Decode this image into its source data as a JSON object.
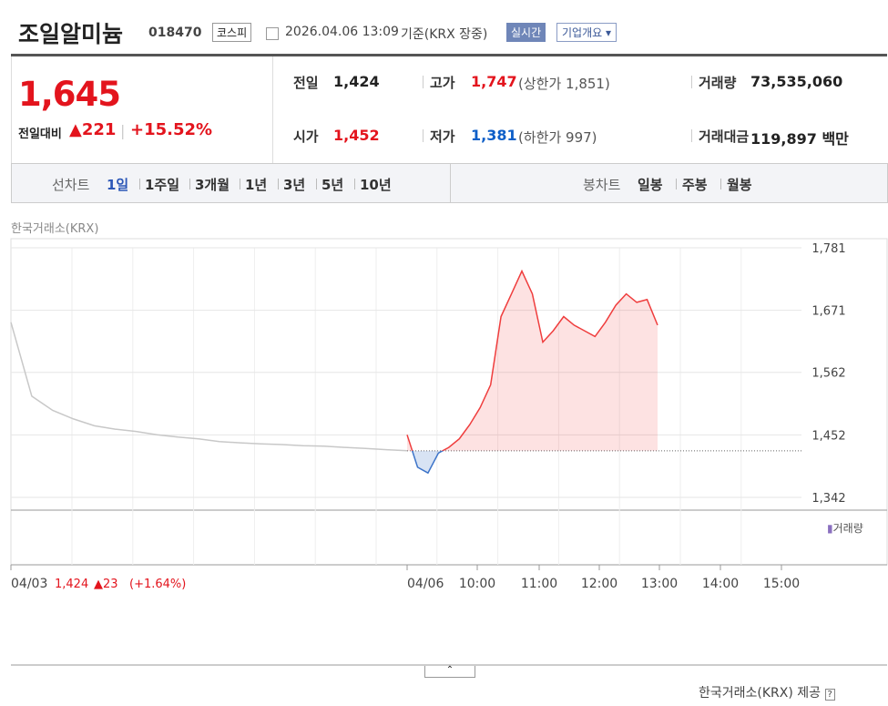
{
  "header": {
    "title": "조일알미늄",
    "code": "018470",
    "market": "코스피",
    "timestamp": "2026.04.06 13:09",
    "basis": "기준(KRX 장중)",
    "realtime": "실시간",
    "company_info": "기업개요"
  },
  "summary": {
    "price": "1,645",
    "change_label": "전일대비",
    "change": "▲221",
    "change_rate": "+15.52%",
    "stats": [
      {
        "label": "전일",
        "value": "1,424"
      },
      {
        "label": "고가",
        "value": "1,747",
        "note": "(상한가 1,851)"
      },
      {
        "label": "거래량",
        "value": "73,535,060"
      },
      {
        "label": "시가",
        "value": "1,452"
      },
      {
        "label": "저가",
        "value": "1,381",
        "note": "(하한가 997)"
      },
      {
        "label": "거래대금",
        "value": "119,897 백만"
      }
    ]
  },
  "tabs": {
    "line_label": "선차트",
    "line": [
      "1일",
      "1주일",
      "3개월",
      "1년",
      "3년",
      "5년",
      "10년"
    ],
    "candle_label": "봉차트",
    "candle": [
      "일봉",
      "주봉",
      "월봉"
    ]
  },
  "chart_data": {
    "type": "line",
    "source": "한국거래소(KRX)",
    "volume_label": "거래량",
    "ylim": [
      1342,
      1781
    ],
    "yticks": [
      {
        "value": 1342,
        "label": "1,342"
      },
      {
        "value": 1452,
        "label": "1,452"
      },
      {
        "value": 1562,
        "label": "1,562"
      },
      {
        "value": 1671,
        "label": "1,671"
      },
      {
        "value": 1781,
        "label": "1,781"
      }
    ],
    "reference": 1424,
    "series": [
      {
        "color": "#c8c8c8",
        "values": [
          1650,
          1520,
          1495,
          1480,
          1468,
          1462,
          1458,
          1452,
          1448,
          1445,
          1440,
          1438,
          1436,
          1435,
          1433,
          1432,
          1430,
          1428,
          1426,
          1424
        ]
      },
      {
        "color": "#ef3d3d",
        "down_color": "#3d74c9",
        "values": [
          1452,
          1395,
          1385,
          1420,
          1430,
          1445,
          1470,
          1500,
          1540,
          1660,
          1700,
          1740,
          1700,
          1615,
          1635,
          1660,
          1645,
          1635,
          1625,
          1650,
          1680,
          1700,
          1685,
          1690,
          1645
        ]
      }
    ],
    "xlabels": [
      "04/03",
      "04/06",
      "10:00",
      "11:00",
      "12:00",
      "13:00",
      "14:00",
      "15:00"
    ],
    "prev_close": {
      "value": "1,424",
      "change": "▲23",
      "rate": "(+1.64%)"
    }
  },
  "footer": "한국거래소(KRX) 제공"
}
